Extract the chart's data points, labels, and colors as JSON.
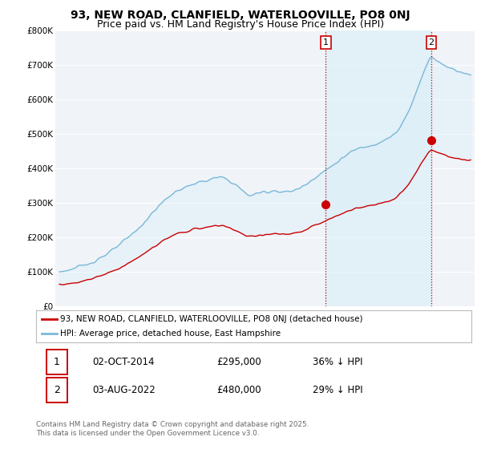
{
  "title": "93, NEW ROAD, CLANFIELD, WATERLOOVILLE, PO8 0NJ",
  "subtitle": "Price paid vs. HM Land Registry's House Price Index (HPI)",
  "ylim": [
    0,
    800000
  ],
  "yticks": [
    0,
    100000,
    200000,
    300000,
    400000,
    500000,
    600000,
    700000,
    800000
  ],
  "ytick_labels": [
    "£0",
    "£100K",
    "£200K",
    "£300K",
    "£400K",
    "£500K",
    "£600K",
    "£700K",
    "£800K"
  ],
  "hpi_color": "#7ab8d8",
  "hpi_fill_color": "#daeef8",
  "price_color": "#cc0000",
  "vline_color": "#cc0000",
  "vline_style": ":",
  "xlim_start": 1994.7,
  "xlim_end": 2025.8,
  "sale1_date": 2014.75,
  "sale1_price": 295000,
  "sale1_label": "1",
  "sale2_date": 2022.58,
  "sale2_price": 480000,
  "sale2_label": "2",
  "legend_entry1": "93, NEW ROAD, CLANFIELD, WATERLOOVILLE, PO8 0NJ (detached house)",
  "legend_entry2": "HPI: Average price, detached house, East Hampshire",
  "annotation1_date": "02-OCT-2014",
  "annotation1_price": "£295,000",
  "annotation1_pct": "36% ↓ HPI",
  "annotation2_date": "03-AUG-2022",
  "annotation2_price": "£480,000",
  "annotation2_pct": "29% ↓ HPI",
  "footnote": "Contains HM Land Registry data © Crown copyright and database right 2025.\nThis data is licensed under the Open Government Licence v3.0.",
  "bg_color": "#ffffff",
  "plot_bg_color": "#f0f4f8",
  "grid_color": "#ffffff",
  "title_fontsize": 10,
  "subtitle_fontsize": 9
}
